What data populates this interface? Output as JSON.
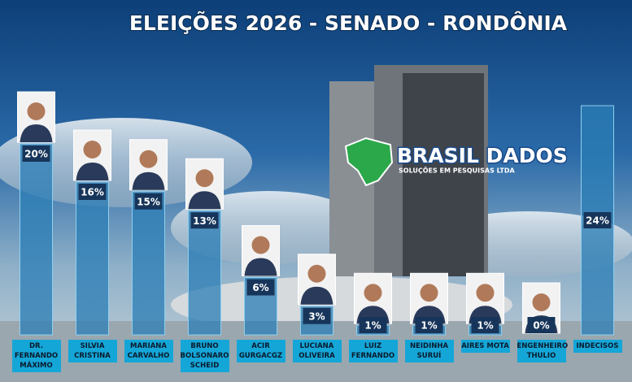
{
  "chart_data": {
    "type": "bar",
    "title": "ELEIÇÕES 2026 - SENADO - RONDÔNIA",
    "logo": "BRASIL DADOS",
    "logo_tagline": "SOLUÇÕES EM PESQUISAS LTDA",
    "categories": [
      "DR.\nFERNANDO\nMÁXIMO",
      "SILVIA\nCRISTINA",
      "MARIANA\nCARVALHO",
      "BRUNO\nBOLSONARO\nSCHEID",
      "ACIR\nGURGACGZ",
      "LUCIANA\nOLIVEIRA",
      "LUIZ\nFERNANDO",
      "NEIDINHA\nSURUÍ",
      "AIRES MOTA",
      "ENGENHEIRO\nTHULIO",
      "INDECISOS"
    ],
    "values": [
      20,
      16,
      15,
      13,
      6,
      3,
      1,
      1,
      1,
      0,
      24
    ],
    "value_labels": [
      "20%",
      "16%",
      "15%",
      "13%",
      "6%",
      "3%",
      "1%",
      "1%",
      "1%",
      "0%",
      "24%"
    ],
    "color": "#2b7db5"
  }
}
